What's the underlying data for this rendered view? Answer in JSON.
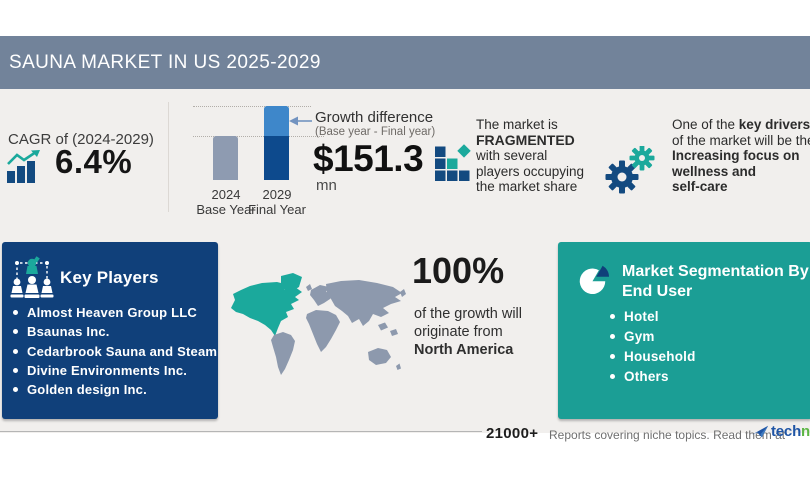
{
  "header": {
    "title": "SAUNA MARKET IN US 2025-2029"
  },
  "cagr": {
    "label": "CAGR of (2024-2029)",
    "value": "6.4%"
  },
  "chart_data": {
    "type": "bar",
    "title": "Growth difference",
    "subtitle": "(Base year - Final year)",
    "value": "$151.3",
    "unit": "mn",
    "categories": [
      "2024",
      "2029"
    ],
    "category_roles": [
      "Base Year",
      "Final Year"
    ],
    "relative_heights": [
      0.59,
      1.0
    ],
    "legend_position": "none",
    "grid": "dotted guide lines at each bar top"
  },
  "fragmented": {
    "line1": "The market is",
    "line2": "FRAGMENTED",
    "line3": "with several",
    "line4": "players occupying",
    "line5": "the market share"
  },
  "drivers": {
    "line1_normal": "One of the ",
    "line1_bold": "key drivers",
    "line2": "of the market will be the",
    "line3": "Increasing focus on",
    "line4": "wellness and",
    "line5": "self-care"
  },
  "key_players": {
    "title": "Key Players",
    "items": [
      "Almost Heaven Group LLC",
      "Bsaunas Inc.",
      "Cedarbrook Sauna and Steam",
      "Divine Environments Inc.",
      "Golden design Inc."
    ]
  },
  "regional": {
    "percent": "100%",
    "line1": "of the growth will",
    "line2": "originate from",
    "region": "North America"
  },
  "segmentation": {
    "title_line1": "Market Segmentation By",
    "title_line2": "End User",
    "items": [
      "Hotel",
      "Gym",
      "Household",
      "Others"
    ]
  },
  "footer": {
    "count": "21000+",
    "tagline": "Reports covering niche topics. Read them at",
    "brand_part1": "tech",
    "brand_part2": "navio"
  },
  "icons": {
    "cagr": "bar-chart-up-arrow-icon",
    "fragmented": "fragment-squares-icon",
    "driver": "gears-icon",
    "key_players": "chess-players-icon",
    "segmentation": "pie-chart-icon",
    "map": "world-map-north-america-highlight",
    "brand": "technavio-arrow-icon"
  },
  "colors": {
    "header_bar": "#72839a",
    "band_bg": "#f1efed",
    "navy_box": "#10407a",
    "navy_icon": "#134a80",
    "bar_gray": "#8e9bb1",
    "bar_light": "#3e87ca",
    "bar_dark": "#0d4a8d",
    "teal_box": "#1b9e95",
    "teal_accent": "#1ba99c",
    "map_gray": "#8d99ad",
    "tech_blue": "#1f55a5",
    "navio_green": "#5cb544"
  }
}
